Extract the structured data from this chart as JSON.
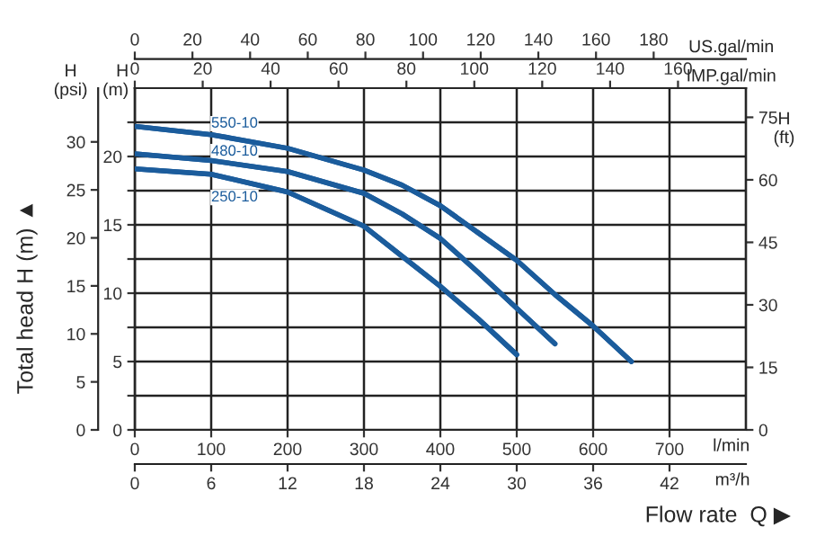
{
  "chart_data": [
    {
      "type": "line",
      "xlabel": "l/min",
      "x2label": "IMP.gal/min",
      "ylabel": "H\n(m)",
      "y2label": "H\n(ft)",
      "y3label": "H\n(psi)",
      "annotations": [
        "Total head H (m) ▲",
        "Flow rate  Q ▶"
      ],
      "x": [
        0,
        100,
        200,
        300,
        350,
        400,
        450,
        500,
        550,
        600,
        650
      ],
      "series": [
        {
          "name": "550-10",
          "color": "#1b5c9c",
          "values": [
            22.2,
            21.6,
            20.6,
            19.0,
            17.9,
            16.4,
            14.4,
            12.4,
            9.9,
            7.6,
            5.0
          ]
        },
        {
          "name": "480-10",
          "color": "#1b5c9c",
          "x": [
            0,
            100,
            200,
            300,
            350,
            400,
            450,
            500,
            550
          ],
          "values": [
            20.2,
            19.7,
            18.9,
            17.3,
            15.8,
            14.0,
            11.5,
            8.9,
            6.3
          ]
        },
        {
          "name": "250-10",
          "color": "#1b5c9c",
          "x": [
            0,
            100,
            200,
            300,
            350,
            400,
            450,
            500
          ],
          "values": [
            19.1,
            18.7,
            17.4,
            14.9,
            12.7,
            10.5,
            8.1,
            5.5
          ]
        }
      ],
      "xlim": [
        0,
        800
      ],
      "xticks": [
        0,
        100,
        200,
        300,
        400,
        500,
        600,
        700
      ],
      "x2lim": [
        0,
        180
      ],
      "x2ticks": [
        0,
        20,
        40,
        60,
        80,
        100,
        120,
        140,
        160
      ],
      "ylim": [
        0,
        25
      ],
      "yticks": [
        0,
        {
          "value": 2.5,
          "label": null
        },
        5,
        {
          "value": 7.5,
          "label": null
        },
        10,
        {
          "value": 12.5,
          "label": null
        },
        15,
        {
          "value": 17.5,
          "label": null
        },
        20,
        {
          "value": 22.5,
          "label": null
        }
      ],
      "y2lim": [
        0,
        82
      ],
      "y2ticks": [
        0,
        15,
        30,
        45,
        60,
        75
      ],
      "y3lim": [
        0,
        35.6
      ],
      "y3ticks": [
        0,
        5,
        10,
        15,
        20,
        25,
        30
      ],
      "grid": true,
      "marker": "none",
      "line_style": "solid",
      "legend": false
    },
    {
      "type": "line",
      "tick_labels": "x",
      "ylim": [
        0,
        25
      ],
      "x": [
        0,
        6,
        12,
        18,
        21,
        24,
        27,
        30,
        33,
        36,
        39
      ],
      "series": [
        {
          "color": "#1b5c9c",
          "values": [
            22.2,
            21.6,
            20.6,
            19.0,
            17.9,
            16.4,
            14.4,
            12.4,
            9.9,
            7.6,
            5.0
          ]
        },
        {
          "color": "#1b5c9c",
          "x": [
            0,
            6,
            12,
            18,
            21,
            24,
            27,
            30,
            33
          ],
          "values": [
            20.2,
            19.7,
            18.9,
            17.3,
            15.8,
            14.0,
            11.5,
            8.9,
            6.3
          ]
        },
        {
          "color": "#1b5c9c",
          "x": [
            0,
            6,
            12,
            18,
            21,
            24,
            27,
            30
          ],
          "values": [
            19.1,
            18.7,
            17.4,
            14.9,
            12.7,
            10.5,
            8.1,
            5.5
          ]
        }
      ],
      "xlabel": "m³/h",
      "xlim": [
        0,
        48
      ],
      "xticks": [
        0,
        6,
        12,
        18,
        24,
        30,
        36,
        42
      ],
      "x2label": "US.gal/min",
      "x2lim": [
        0,
        212
      ],
      "x2ticks": [
        0,
        20,
        40,
        60,
        80,
        100,
        120,
        140,
        160,
        180
      ]
    }
  ]
}
